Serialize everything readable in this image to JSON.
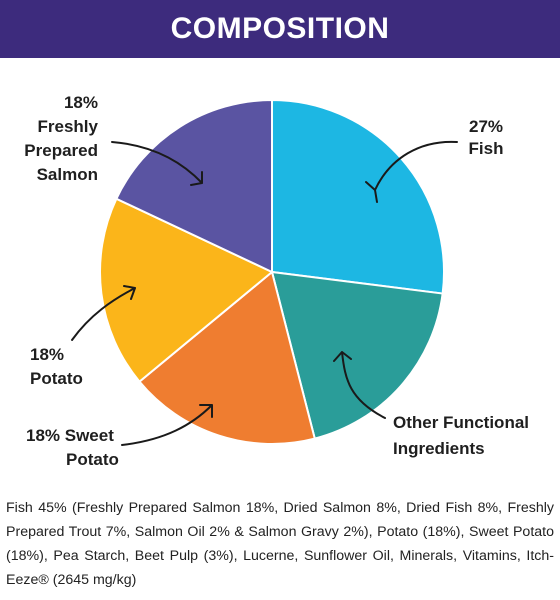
{
  "header": {
    "title": "COMPOSITION"
  },
  "chart_data": {
    "type": "pie",
    "title": "",
    "slices": [
      {
        "name": "Fish",
        "value": 27,
        "color": "#1db7e3",
        "label_lines": [
          "27%",
          "Fish"
        ]
      },
      {
        "name": "Other Functional Ingredients",
        "value": 19,
        "color": "#2a9d99",
        "label_lines": [
          "Other Functional",
          "Ingredients"
        ]
      },
      {
        "name": "Sweet Potato",
        "value": 18,
        "color": "#ef7d30",
        "label_lines": [
          "18% Sweet",
          "Potato"
        ]
      },
      {
        "name": "Potato",
        "value": 18,
        "color": "#fbb51a",
        "label_lines": [
          "18%",
          "Potato"
        ]
      },
      {
        "name": "Freshly Prepared Salmon",
        "value": 18,
        "color": "#5a54a2",
        "label_lines": [
          "18%",
          "Freshly",
          "Prepared",
          "Salmon"
        ]
      }
    ]
  },
  "composition_text": "Fish 45% (Freshly Prepared Salmon 18%, Dried Salmon 8%, Dried Fish 8%, Freshly Prepared Trout 7%, Salmon Oil 2% & Salmon Gravy 2%), Potato (18%), Sweet Potato (18%), Pea Starch, Beet Pulp (3%), Lucerne, Sunflower Oil, Minerals, Vitamins, Itch-Eeze® (2645 mg/kg)"
}
